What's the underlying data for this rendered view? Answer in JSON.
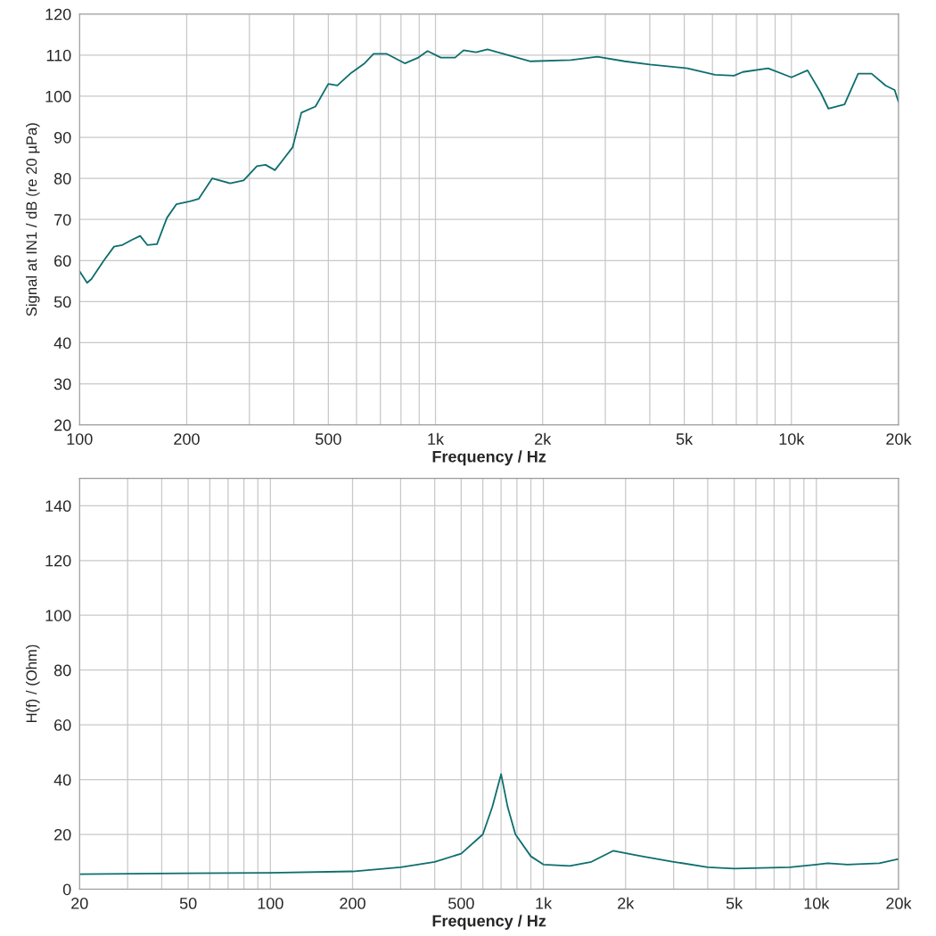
{
  "chart_data": [
    {
      "type": "line",
      "xlabel": "Frequency / Hz",
      "ylabel": "Signal at IN1 / dB (re 20 µPa)",
      "log": "x",
      "grid": true,
      "xlim": [
        100,
        20000
      ],
      "ylim": [
        20,
        120
      ],
      "yticks": [
        20,
        30,
        40,
        50,
        60,
        70,
        80,
        90,
        100,
        110,
        120
      ],
      "xticks": [
        100,
        200,
        {
          "value": 300,
          "label": null
        },
        {
          "value": 400,
          "label": null
        },
        500,
        {
          "value": 600,
          "label": null
        },
        {
          "value": 700,
          "label": null
        },
        {
          "value": 800,
          "label": null
        },
        {
          "value": 900,
          "label": null
        },
        {
          "value": 1000,
          "label": "1k"
        },
        {
          "value": 2000,
          "label": "2k"
        },
        {
          "value": 3000,
          "label": null
        },
        {
          "value": 4000,
          "label": null
        },
        {
          "value": 5000,
          "label": "5k"
        },
        {
          "value": 6000,
          "label": null
        },
        {
          "value": 7000,
          "label": null
        },
        {
          "value": 8000,
          "label": null
        },
        {
          "value": 9000,
          "label": null
        },
        {
          "value": 10000,
          "label": "10k"
        },
        {
          "value": 20000,
          "label": "20k"
        }
      ],
      "series": [
        {
          "color": "#0e6e6e",
          "x": [
            100,
            105,
            108,
            117,
            125,
            132,
            140,
            148,
            155,
            165,
            176,
            187,
            204,
            216,
            236,
            265,
            289,
            315,
            333,
            354,
            375,
            397,
            420,
            460,
            500,
            530,
            580,
            630,
            670,
            730,
            820,
            895,
            950,
            1035,
            1135,
            1200,
            1300,
            1400,
            1600,
            1850,
            2400,
            2850,
            3400,
            4000,
            5100,
            6100,
            6900,
            7300,
            8600,
            10000,
            11100,
            12100,
            12700,
            14100,
            15400,
            16800,
            18400,
            19500,
            20000
          ],
          "values": [
            57.4,
            54.6,
            55.5,
            60,
            63.4,
            63.8,
            65,
            66,
            63.8,
            64,
            70.4,
            73.7,
            74.4,
            75,
            80,
            78.8,
            79.5,
            83,
            83.3,
            82,
            84.8,
            87.6,
            96,
            97.5,
            103,
            102.6,
            105.7,
            107.9,
            110.3,
            110.3,
            108,
            109.4,
            111,
            109.4,
            109.4,
            111.2,
            110.7,
            111.4,
            110,
            108.5,
            108.8,
            109.6,
            108.5,
            107.7,
            106.8,
            105.2,
            105,
            105.9,
            106.8,
            104.6,
            106.3,
            100.8,
            97,
            98,
            105.5,
            105.5,
            102.6,
            101.5,
            98.6
          ]
        }
      ]
    },
    {
      "type": "line",
      "xlabel": "Frequency / Hz",
      "ylabel": "H(f) / (Ohm)",
      "log": "x",
      "grid": true,
      "xlim": [
        20,
        20000
      ],
      "ylim": [
        0,
        150
      ],
      "yticks": [
        0,
        20,
        40,
        60,
        80,
        100,
        120,
        140
      ],
      "xticks": [
        20,
        {
          "value": 30,
          "label": null
        },
        {
          "value": 40,
          "label": null
        },
        50,
        {
          "value": 60,
          "label": null
        },
        {
          "value": 70,
          "label": null
        },
        {
          "value": 80,
          "label": null
        },
        {
          "value": 90,
          "label": null
        },
        100,
        200,
        {
          "value": 300,
          "label": null
        },
        {
          "value": 400,
          "label": null
        },
        500,
        {
          "value": 600,
          "label": null
        },
        {
          "value": 700,
          "label": null
        },
        {
          "value": 800,
          "label": null
        },
        {
          "value": 900,
          "label": null
        },
        {
          "value": 1000,
          "label": "1k"
        },
        {
          "value": 2000,
          "label": "2k"
        },
        {
          "value": 3000,
          "label": null
        },
        {
          "value": 4000,
          "label": null
        },
        {
          "value": 5000,
          "label": "5k"
        },
        {
          "value": 6000,
          "label": null
        },
        {
          "value": 7000,
          "label": null
        },
        {
          "value": 8000,
          "label": null
        },
        {
          "value": 9000,
          "label": null
        },
        {
          "value": 10000,
          "label": "10k"
        },
        {
          "value": 20000,
          "label": "20k"
        }
      ],
      "series": [
        {
          "color": "#0e6e6e",
          "x": [
            20,
            50,
            100,
            200,
            300,
            400,
            500,
            600,
            650,
            700,
            740,
            790,
            900,
            1000,
            1250,
            1500,
            1800,
            2300,
            3000,
            4000,
            5000,
            8000,
            10000,
            11000,
            13000,
            17000,
            20000
          ],
          "values": [
            5.5,
            5.8,
            6,
            6.5,
            8,
            10,
            13,
            20,
            30,
            42,
            30,
            20,
            12,
            9,
            8.5,
            10,
            14,
            12,
            10,
            8,
            7.5,
            8,
            9,
            9.5,
            9,
            9.5,
            11
          ]
        }
      ]
    }
  ]
}
